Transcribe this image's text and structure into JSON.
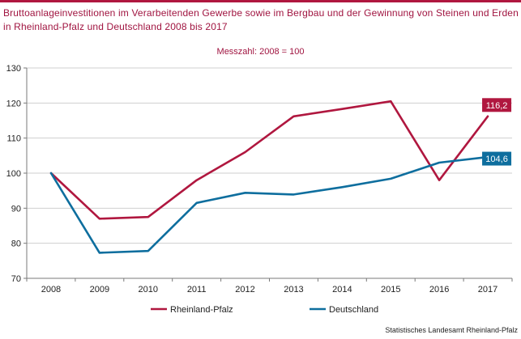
{
  "title": "Bruttoanlageinvestitionen im Verarbeitenden Gewerbe sowie im Bergbau und der Gewinnung von Steinen und Erden in Rheinland-Pfalz und Deutschland 2008 bis 2017",
  "subtitle": "Messzahl: 2008 = 100",
  "source": "Statistisches Landesamt Rheinland-Pfalz",
  "colors": {
    "accent": "#b0173f",
    "text_accent": "#a01440"
  },
  "chart_data": {
    "type": "line",
    "categories": [
      "2008",
      "2009",
      "2010",
      "2011",
      "2012",
      "2013",
      "2014",
      "2015",
      "2016",
      "2017"
    ],
    "ylim": [
      70,
      130
    ],
    "yticks": [
      "70",
      "80",
      "90",
      "100",
      "110",
      "120",
      "130"
    ],
    "grid": true,
    "legend_placement": "bottom",
    "series": [
      {
        "name": "Rheinland-Pfalz",
        "color": "#b0173f",
        "values": [
          100,
          87,
          87.5,
          98,
          106,
          116.2,
          118.3,
          120.5,
          98,
          116.2
        ],
        "end_label": "116,2"
      },
      {
        "name": "Deutschland",
        "color": "#0e6e9e",
        "values": [
          100,
          77.3,
          77.8,
          91.5,
          94.4,
          93.9,
          96,
          98.4,
          103,
          104.6
        ],
        "end_label": "104,6"
      }
    ]
  }
}
